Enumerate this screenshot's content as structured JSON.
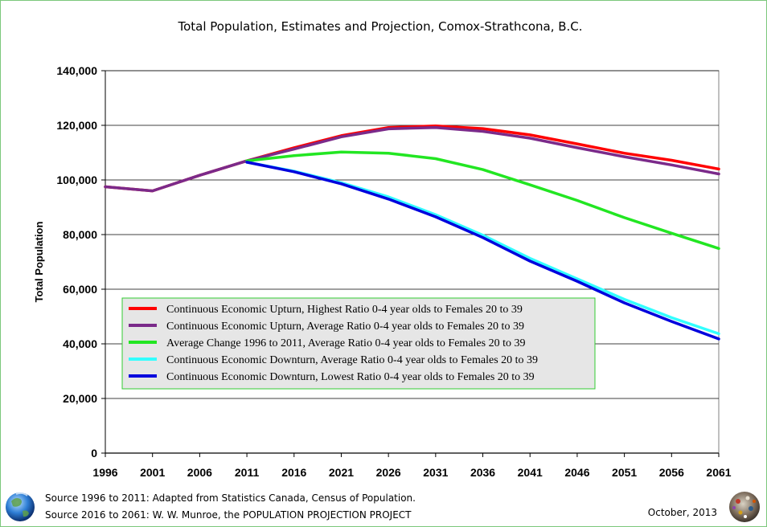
{
  "chart_data": {
    "type": "line",
    "title": "Total Population, Estimates and Projection, Comox-Strathcona, B.C.",
    "xlabel": "",
    "ylabel": "Total Population",
    "x": [
      1996,
      2001,
      2006,
      2011,
      2016,
      2021,
      2026,
      2031,
      2036,
      2041,
      2046,
      2051,
      2056,
      2061
    ],
    "x_tick_labels": [
      "1996",
      "2001",
      "2006",
      "2011",
      "2016",
      "2021",
      "2026",
      "2031",
      "2036",
      "2041",
      "2046",
      "2051",
      "2056",
      "2061"
    ],
    "ylim": [
      0,
      140000
    ],
    "y_ticks": [
      0,
      20000,
      40000,
      60000,
      80000,
      100000,
      120000,
      140000
    ],
    "y_tick_labels": [
      "0",
      "20,000",
      "40,000",
      "60,000",
      "80,000",
      "100,000",
      "120,000",
      "140,000"
    ],
    "grid": "horizontal",
    "legend_position": "lower-left inside plot",
    "series": [
      {
        "name": "Continuous Economic Upturn, Highest Ratio 0-4 year olds to Females 20 to 39",
        "color": "#ff0000",
        "values": [
          97500,
          96000,
          101700,
          107000,
          111800,
          116200,
          119200,
          119800,
          118800,
          116500,
          113200,
          109800,
          107200,
          104000
        ]
      },
      {
        "name": "Continuous Economic Upturn, Average Ratio 0-4 year olds to Females 20 to 39",
        "color": "#7b2a8a",
        "values": [
          97500,
          96000,
          101700,
          107000,
          111300,
          115800,
          118700,
          119200,
          117800,
          115300,
          111800,
          108500,
          105500,
          102200
        ]
      },
      {
        "name": "Average Change 1996 to 2011, Average Ratio 0-4 year olds to Females 20 to 39",
        "color": "#22e622",
        "values": [
          null,
          null,
          null,
          107000,
          108900,
          110200,
          109800,
          107800,
          103800,
          98200,
          92500,
          86200,
          80500,
          74900
        ]
      },
      {
        "name": "Continuous Economic Downturn, Average Ratio 0-4 year olds to Females 20 to 39",
        "color": "#33ffff",
        "values": [
          null,
          null,
          null,
          106500,
          103200,
          99000,
          93800,
          87300,
          79800,
          71300,
          63800,
          56300,
          49600,
          43700
        ]
      },
      {
        "name": "Continuous Economic Downturn, Lowest Ratio 0-4 year olds to Females 20 to 39",
        "color": "#0000dd",
        "values": [
          null,
          null,
          null,
          106500,
          103000,
          98600,
          93000,
          86500,
          78900,
          70300,
          62900,
          55000,
          48200,
          41800
        ]
      }
    ]
  },
  "footer": {
    "source1": "Source 1996 to 2011: Adapted from Statistics Canada, Census of Population.",
    "source2": "Source 2016 to 2061: W. W. Munroe, the POPULATION PROJECTION PROJECT",
    "date": "October, 2013"
  },
  "icons": {
    "left": "earth-globe-icon",
    "right": "mosaic-globe-icon"
  }
}
